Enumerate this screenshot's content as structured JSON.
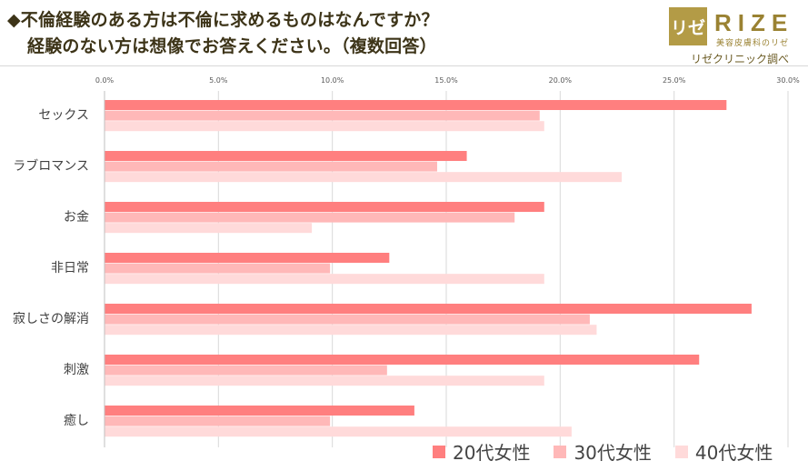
{
  "header": {
    "title_line1": "◆不倫経験のある方は不倫に求めるものはなんですか？",
    "title_line2": "経験のない方は想像でお答えください。（複数回答）"
  },
  "logo": {
    "mark": "リゼ",
    "word": "RIZE",
    "sub": "美容皮膚科のリゼ",
    "credit": "リゼクリニック調べ"
  },
  "colors": {
    "s20": "#ff7f7f",
    "s30": "#ffb8b8",
    "s40": "#ffdada",
    "title": "#3d3418",
    "gold": "#b39b46"
  },
  "chart_data": {
    "type": "bar",
    "orientation": "horizontal",
    "categories": [
      "セックス",
      "ラブロマンス",
      "お金",
      "非日常",
      "寂しさの解消",
      "刺激",
      "癒し"
    ],
    "series": [
      {
        "name": "20代女性",
        "values": [
          27.3,
          15.9,
          19.3,
          12.5,
          28.4,
          26.1,
          13.6
        ]
      },
      {
        "name": "30代女性",
        "values": [
          19.1,
          14.6,
          18.0,
          9.9,
          21.3,
          12.4,
          9.9
        ]
      },
      {
        "name": "40代女性",
        "values": [
          19.3,
          22.7,
          9.1,
          19.3,
          21.6,
          19.3,
          20.5
        ]
      }
    ],
    "xlim": [
      0,
      30
    ],
    "xticks": [
      "0.0%",
      "5.0%",
      "10.0%",
      "15.0%",
      "20.0%",
      "25.0%",
      "30.0%"
    ],
    "grid": true,
    "legend_position": "bottom-right"
  }
}
